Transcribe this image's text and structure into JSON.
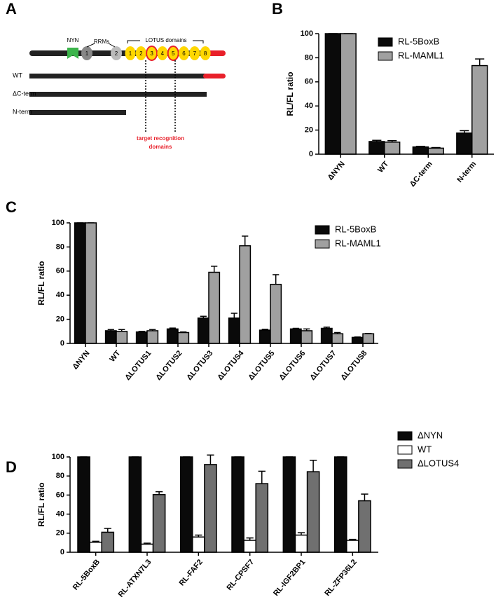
{
  "diagram": {
    "label": "A",
    "nyn": "NYN",
    "rrms": "RRMs",
    "lotus": "LOTUS domains",
    "rrm_numbers": [
      "1",
      "2"
    ],
    "lotus_numbers": [
      "1",
      "2",
      "3",
      "4",
      "5",
      "6",
      "7",
      "8"
    ],
    "constructs": [
      "WT",
      "ΔC-term",
      "N-term"
    ],
    "annotation": [
      "target recognition",
      "domains"
    ]
  },
  "chart_data": [
    {
      "type": "bar",
      "panel": "B",
      "y_label": "RL/FL ratio",
      "categories": [
        "ΔNYN",
        "WT",
        "ΔC-term",
        "N-term"
      ],
      "series": [
        {
          "name": "RL-5BoxB",
          "color": "#0a0a0a",
          "values": [
            100,
            10.5,
            6,
            17.5
          ],
          "errors": [
            0,
            1,
            0.5,
            2
          ]
        },
        {
          "name": "RL-MAML1",
          "color": "#a0a0a0",
          "values": [
            100,
            10,
            5,
            73.5
          ],
          "errors": [
            0,
            1.2,
            0.5,
            5.5
          ]
        }
      ],
      "ylim": [
        0,
        100
      ],
      "yticks": [
        0,
        20,
        40,
        60,
        80,
        100
      ],
      "legend": "upper right"
    },
    {
      "type": "bar",
      "panel": "C",
      "y_label": "RL/FL ratio",
      "categories": [
        "ΔNYN",
        "WT",
        "ΔLOTUS1",
        "ΔLOTUS2",
        "ΔLOTUS3",
        "ΔLOTUS4",
        "ΔLOTUS5",
        "ΔLOTUS6",
        "ΔLOTUS7",
        "ΔLOTUS8"
      ],
      "series": [
        {
          "name": "RL-5BoxB",
          "color": "#0a0a0a",
          "values": [
            100,
            10.5,
            9.5,
            12,
            21,
            21,
            11,
            12,
            12.5,
            5
          ],
          "errors": [
            0,
            1,
            0.5,
            0.7,
            1.5,
            4,
            0.7,
            0.5,
            1,
            0.3
          ]
        },
        {
          "name": "RL-MAML1",
          "color": "#a0a0a0",
          "values": [
            100,
            10,
            10.5,
            9,
            59,
            81,
            49,
            10.5,
            8,
            8
          ],
          "errors": [
            0,
            1.5,
            1,
            0.5,
            5,
            8,
            8,
            1.5,
            1,
            0.3
          ]
        }
      ],
      "ylim": [
        0,
        100
      ],
      "yticks": [
        0,
        20,
        40,
        60,
        80,
        100
      ],
      "legend": "upper right"
    },
    {
      "type": "bar",
      "panel": "D",
      "y_label": "RL/FL ratio",
      "categories": [
        "RL-5BoxB",
        "RL-ATXN7L3",
        "RL-FAF2",
        "RL-CPSF7",
        "RL-IGF2BP1",
        "RL-ZFP36L2"
      ],
      "series": [
        {
          "name": "ΔNYN",
          "color": "#0a0a0a",
          "values": [
            100,
            100,
            100,
            100,
            100,
            100
          ],
          "errors": [
            0,
            0,
            0,
            0,
            0,
            0
          ]
        },
        {
          "name": "WT",
          "color": "#ffffff",
          "values": [
            10.5,
            8.5,
            16,
            12.5,
            18,
            12.5
          ],
          "errors": [
            1,
            1,
            2,
            2.5,
            2.5,
            1
          ]
        },
        {
          "name": "ΔLOTUS4",
          "color": "#707070",
          "values": [
            21,
            60.5,
            92,
            72,
            84.5,
            54
          ],
          "errors": [
            4,
            3,
            10,
            13,
            12,
            7
          ]
        }
      ],
      "ylim": [
        0,
        100
      ],
      "yticks": [
        0,
        20,
        40,
        60,
        80,
        100
      ],
      "legend": "outside right"
    }
  ]
}
